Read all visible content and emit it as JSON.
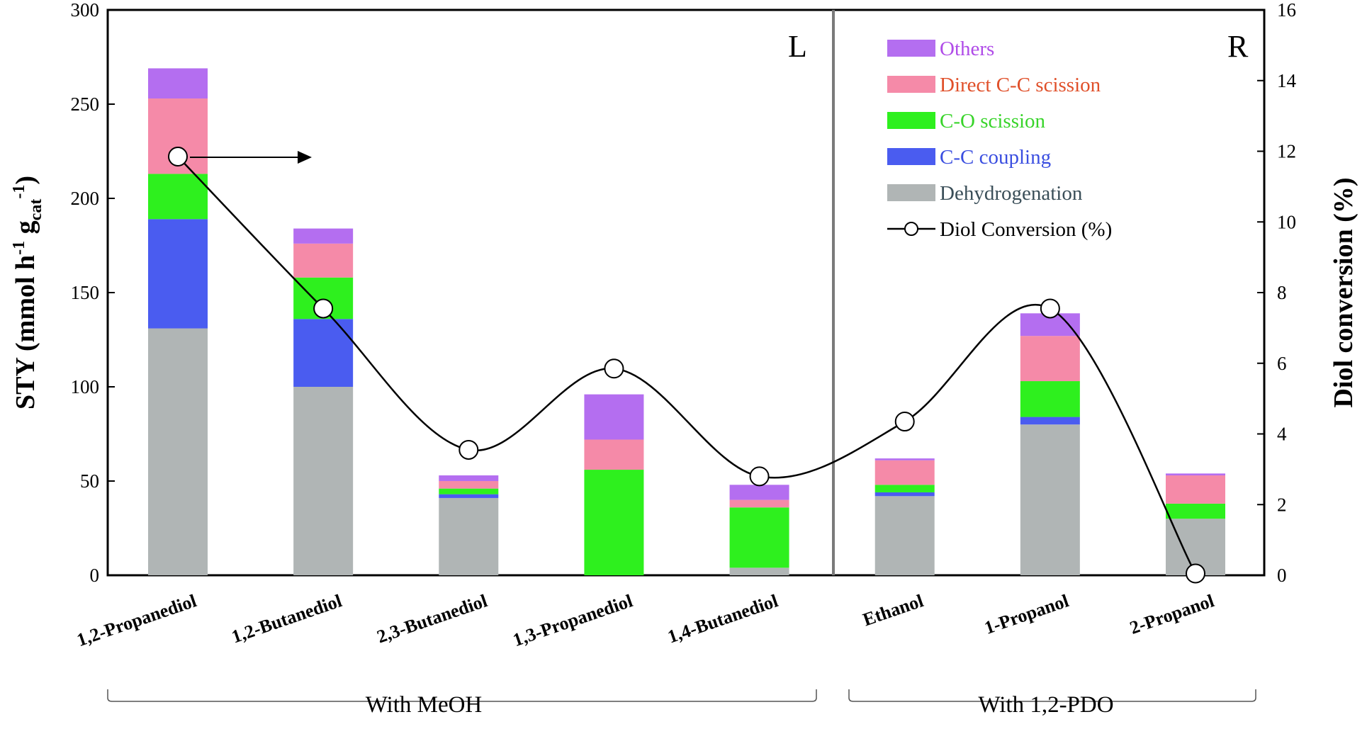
{
  "chart_data": {
    "type": "bar",
    "stacked": true,
    "categories": [
      "1,2-Propanediol",
      "1,2-Butanediol",
      "2,3-Butanediol",
      "1,3-Propanediol",
      "1,4-Butanediol",
      "Ethanol",
      "1-Propanol",
      "2-Propanol"
    ],
    "series": [
      {
        "name": "Dehydrogenation",
        "color": "#b0b5b5",
        "values": [
          131,
          100,
          41,
          0,
          4,
          42,
          80,
          30
        ]
      },
      {
        "name": "C-C coupling",
        "color": "#4a5cf0",
        "values": [
          58,
          36,
          2,
          0,
          0,
          2,
          4,
          0
        ]
      },
      {
        "name": "C-O scission",
        "color": "#2ef01e",
        "values": [
          24,
          22,
          3,
          56,
          32,
          4,
          19,
          8
        ]
      },
      {
        "name": "Direct C-C scission",
        "color": "#f58aa8",
        "values": [
          40,
          18,
          4,
          16,
          4,
          13,
          24,
          15
        ]
      },
      {
        "name": "Others",
        "color": "#b46ef0",
        "values": [
          16,
          8,
          3,
          24,
          8,
          1,
          12,
          1
        ]
      }
    ],
    "line_series": {
      "name": "Diol Conversion (%)",
      "axis": "right",
      "values": [
        11.85,
        7.55,
        3.55,
        5.85,
        2.8,
        4.35,
        7.55,
        0.05
      ]
    },
    "ylabel": "STY (mmol h-1 gcat -1)",
    "ylabel_parts": {
      "main": "STY (mmol h",
      "sup1": "-1",
      "mid": " g",
      "sub": "cat",
      "sup2": "-1",
      "close": ")"
    },
    "y2label": "Diol conversion (%)",
    "ylim": [
      0,
      300
    ],
    "y2lim": [
      0,
      16
    ],
    "yticks": [
      "0",
      "50",
      "100",
      "150",
      "200",
      "250",
      "300"
    ],
    "y2ticks": [
      "0",
      "2",
      "4",
      "6",
      "8",
      "10",
      "12",
      "14",
      "16"
    ],
    "panel_left": "L",
    "panel_right": "R",
    "group_left": "With MeOH",
    "group_right": "With 1,2-PDO",
    "legend_position": "top-right",
    "legend_text_colors": {
      "Others": "#b04ce8",
      "Direct C-C scission": "#e0502a",
      "C-O scission": "#38d42a",
      "C-C coupling": "#3a4ee0",
      "Dehydrogenation": "#3a4e58",
      "Diol Conversion (%)": "#000000"
    }
  }
}
